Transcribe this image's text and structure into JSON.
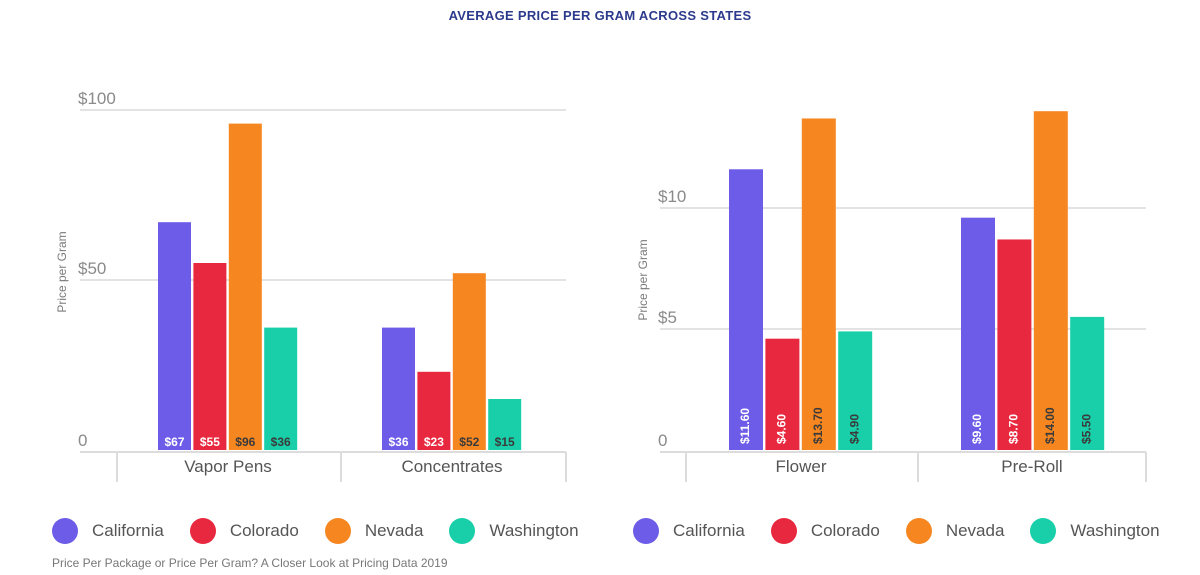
{
  "title": "AVERAGE PRICE PER GRAM ACROSS STATES",
  "source": "Price Per Package or Price Per Gram? A Closer Look at Pricing Data 2019",
  "colors": {
    "California": "#6c5ce7",
    "Colorado": "#e8283e",
    "Nevada": "#f6861f",
    "Washington": "#18cfa9"
  },
  "chart_data": [
    {
      "type": "bar",
      "title": "",
      "xlabel": "",
      "ylabel": "Price per Gram",
      "ylim": [
        0,
        100
      ],
      "yticks": [
        "0",
        "$50",
        "$100"
      ],
      "categories": [
        "Vapor Pens",
        "Concentrates"
      ],
      "series": [
        {
          "name": "California",
          "values": [
            67,
            36
          ],
          "labels": [
            "$67",
            "$36"
          ]
        },
        {
          "name": "Colorado",
          "values": [
            55,
            23
          ],
          "labels": [
            "$55",
            "$23"
          ]
        },
        {
          "name": "Nevada",
          "values": [
            96,
            52
          ],
          "labels": [
            "$96",
            "$52"
          ]
        },
        {
          "name": "Washington",
          "values": [
            36,
            15
          ],
          "labels": [
            "$36",
            "$15"
          ]
        }
      ],
      "legend": [
        "California",
        "Colorado",
        "Nevada",
        "Washington"
      ],
      "grid": true
    },
    {
      "type": "bar",
      "title": "",
      "xlabel": "",
      "ylabel": "Price per Gram",
      "ylim": [
        0,
        15
      ],
      "yticks": [
        "0",
        "$5",
        "$10"
      ],
      "categories": [
        "Flower",
        "Pre-Roll"
      ],
      "series": [
        {
          "name": "California",
          "values": [
            11.6,
            9.6
          ],
          "labels": [
            "$11.60",
            "$9.60"
          ]
        },
        {
          "name": "Colorado",
          "values": [
            4.6,
            8.7
          ],
          "labels": [
            "$4.60",
            "$8.70"
          ]
        },
        {
          "name": "Nevada",
          "values": [
            13.7,
            14.0
          ],
          "labels": [
            "$13.70",
            "$14.00"
          ]
        },
        {
          "name": "Washington",
          "values": [
            4.9,
            5.5
          ],
          "labels": [
            "$4.90",
            "$5.50"
          ]
        }
      ],
      "legend": [
        "California",
        "Colorado",
        "Nevada",
        "Washington"
      ],
      "grid": true
    }
  ]
}
